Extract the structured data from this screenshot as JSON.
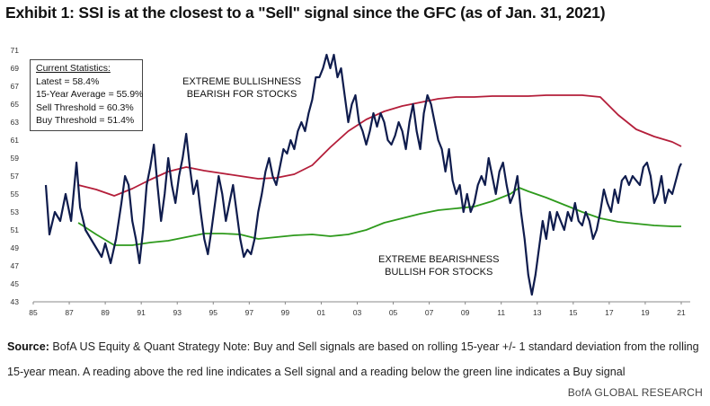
{
  "title": "Exhibit 1: SSI is at the closest to a \"Sell\" signal since the GFC (as of Jan. 31, 2021)",
  "stats": {
    "header": "Current Statistics:",
    "latest": "Latest = 58.4%",
    "avg": "15-Year Average = 55.9%",
    "sell": "Sell Threshold = 60.3%",
    "buy": "Buy Threshold = 51.4%"
  },
  "annotations": {
    "bull_1": "EXTREME BULLISHNESS",
    "bull_2": "BEARISH FOR STOCKS",
    "bear_1": "EXTREME BEARISHNESS",
    "bear_2": "BULLISH FOR STOCKS"
  },
  "source": {
    "label": "Source:",
    "text": " BofA US Equity & Quant Strategy Note: Buy and Sell signals are based on rolling 15-year +/- 1 standard deviation from the rolling 15-year mean. A reading above the red line indicates a Sell signal and a reading below the green line indicates a Buy signal"
  },
  "footer": "BofA GLOBAL RESEARCH",
  "colors": {
    "ssi": "#0f1c4d",
    "sell": "#b41e3a",
    "buy": "#2e9a1c"
  },
  "chart_data": {
    "type": "line",
    "xlim": [
      1985,
      2021.5
    ],
    "ylim": [
      43,
      71
    ],
    "x_ticks": [
      "85",
      "87",
      "89",
      "91",
      "93",
      "95",
      "97",
      "99",
      "01",
      "03",
      "05",
      "07",
      "09",
      "11",
      "13",
      "15",
      "17",
      "19",
      "21"
    ],
    "y_ticks": [
      "43",
      "45",
      "47",
      "49",
      "51",
      "53",
      "55",
      "57",
      "59",
      "61",
      "63",
      "65",
      "67",
      "69",
      "71"
    ],
    "grid": false,
    "series": [
      {
        "key": "ssi",
        "points": [
          [
            1985.7,
            56
          ],
          [
            1985.9,
            50.5
          ],
          [
            1986.2,
            53
          ],
          [
            1986.5,
            52
          ],
          [
            1986.8,
            55
          ],
          [
            1987.1,
            52
          ],
          [
            1987.4,
            58.5
          ],
          [
            1987.6,
            53.5
          ],
          [
            1987.9,
            51
          ],
          [
            1988.2,
            50
          ],
          [
            1988.5,
            49
          ],
          [
            1988.8,
            48
          ],
          [
            1989.0,
            49.5
          ],
          [
            1989.3,
            47.3
          ],
          [
            1989.6,
            50
          ],
          [
            1989.9,
            54
          ],
          [
            1990.1,
            57
          ],
          [
            1990.3,
            56
          ],
          [
            1990.5,
            52
          ],
          [
            1990.7,
            50
          ],
          [
            1990.9,
            47.3
          ],
          [
            1991.1,
            51
          ],
          [
            1991.3,
            56
          ],
          [
            1991.5,
            58
          ],
          [
            1991.7,
            60.5
          ],
          [
            1991.9,
            56
          ],
          [
            1992.1,
            52
          ],
          [
            1992.3,
            55
          ],
          [
            1992.5,
            59
          ],
          [
            1992.7,
            56
          ],
          [
            1992.9,
            54
          ],
          [
            1993.1,
            57
          ],
          [
            1993.3,
            59
          ],
          [
            1993.5,
            61.7
          ],
          [
            1993.7,
            58
          ],
          [
            1993.9,
            55
          ],
          [
            1994.1,
            56.5
          ],
          [
            1994.3,
            53
          ],
          [
            1994.5,
            50
          ],
          [
            1994.7,
            48.3
          ],
          [
            1994.9,
            51
          ],
          [
            1995.1,
            54
          ],
          [
            1995.3,
            57
          ],
          [
            1995.5,
            55
          ],
          [
            1995.7,
            52
          ],
          [
            1995.9,
            54
          ],
          [
            1996.1,
            56
          ],
          [
            1996.3,
            53
          ],
          [
            1996.5,
            50
          ],
          [
            1996.7,
            48
          ],
          [
            1996.9,
            48.8
          ],
          [
            1997.1,
            48.3
          ],
          [
            1997.3,
            50
          ],
          [
            1997.5,
            53
          ],
          [
            1997.7,
            55
          ],
          [
            1997.9,
            57.5
          ],
          [
            1998.1,
            59
          ],
          [
            1998.3,
            57
          ],
          [
            1998.5,
            56
          ],
          [
            1998.7,
            58
          ],
          [
            1998.9,
            60
          ],
          [
            1999.1,
            59.5
          ],
          [
            1999.3,
            61
          ],
          [
            1999.5,
            60
          ],
          [
            1999.7,
            62
          ],
          [
            1999.9,
            63
          ],
          [
            2000.1,
            62
          ],
          [
            2000.3,
            64
          ],
          [
            2000.5,
            65.5
          ],
          [
            2000.7,
            68
          ],
          [
            2000.9,
            68
          ],
          [
            2001.1,
            69
          ],
          [
            2001.3,
            70.5
          ],
          [
            2001.5,
            69
          ],
          [
            2001.7,
            70.5
          ],
          [
            2001.9,
            68
          ],
          [
            2002.1,
            69
          ],
          [
            2002.3,
            66
          ],
          [
            2002.5,
            63
          ],
          [
            2002.7,
            65
          ],
          [
            2002.9,
            66
          ],
          [
            2003.1,
            63
          ],
          [
            2003.3,
            62
          ],
          [
            2003.5,
            60.5
          ],
          [
            2003.7,
            62
          ],
          [
            2003.9,
            64
          ],
          [
            2004.1,
            62.5
          ],
          [
            2004.3,
            64
          ],
          [
            2004.5,
            63
          ],
          [
            2004.7,
            61
          ],
          [
            2004.9,
            60.5
          ],
          [
            2005.1,
            61.5
          ],
          [
            2005.3,
            63
          ],
          [
            2005.5,
            62
          ],
          [
            2005.7,
            60
          ],
          [
            2005.9,
            63
          ],
          [
            2006.1,
            65
          ],
          [
            2006.3,
            62
          ],
          [
            2006.5,
            60
          ],
          [
            2006.7,
            64
          ],
          [
            2006.9,
            66
          ],
          [
            2007.1,
            65
          ],
          [
            2007.3,
            63
          ],
          [
            2007.5,
            61
          ],
          [
            2007.7,
            60
          ],
          [
            2007.9,
            57.5
          ],
          [
            2008.1,
            60
          ],
          [
            2008.3,
            56.5
          ],
          [
            2008.5,
            55
          ],
          [
            2008.7,
            56
          ],
          [
            2008.9,
            53
          ],
          [
            2009.1,
            55
          ],
          [
            2009.3,
            53
          ],
          [
            2009.5,
            54
          ],
          [
            2009.7,
            56
          ],
          [
            2009.9,
            57
          ],
          [
            2010.1,
            56
          ],
          [
            2010.3,
            59
          ],
          [
            2010.5,
            57
          ],
          [
            2010.7,
            55
          ],
          [
            2010.9,
            57.5
          ],
          [
            2011.1,
            58.5
          ],
          [
            2011.3,
            56
          ],
          [
            2011.5,
            54
          ],
          [
            2011.7,
            55
          ],
          [
            2011.9,
            57
          ],
          [
            2012.1,
            53
          ],
          [
            2012.3,
            50
          ],
          [
            2012.5,
            46
          ],
          [
            2012.7,
            43.8
          ],
          [
            2012.9,
            46
          ],
          [
            2013.1,
            49
          ],
          [
            2013.3,
            52
          ],
          [
            2013.5,
            50
          ],
          [
            2013.7,
            53
          ],
          [
            2013.9,
            51
          ],
          [
            2014.1,
            53
          ],
          [
            2014.3,
            52
          ],
          [
            2014.5,
            51
          ],
          [
            2014.7,
            53
          ],
          [
            2014.9,
            52
          ],
          [
            2015.1,
            54
          ],
          [
            2015.3,
            52
          ],
          [
            2015.5,
            51.5
          ],
          [
            2015.7,
            53
          ],
          [
            2015.9,
            52
          ],
          [
            2016.1,
            50
          ],
          [
            2016.3,
            51
          ],
          [
            2016.5,
            53
          ],
          [
            2016.7,
            55.5
          ],
          [
            2016.9,
            54
          ],
          [
            2017.1,
            53
          ],
          [
            2017.3,
            55.5
          ],
          [
            2017.5,
            54
          ],
          [
            2017.7,
            56.5
          ],
          [
            2017.9,
            57
          ],
          [
            2018.1,
            56
          ],
          [
            2018.3,
            57
          ],
          [
            2018.5,
            56.5
          ],
          [
            2018.7,
            56
          ],
          [
            2018.9,
            58
          ],
          [
            2019.1,
            58.5
          ],
          [
            2019.3,
            57
          ],
          [
            2019.5,
            54
          ],
          [
            2019.7,
            55
          ],
          [
            2019.9,
            57
          ],
          [
            2020.1,
            54
          ],
          [
            2020.3,
            55.5
          ],
          [
            2020.5,
            55
          ],
          [
            2020.7,
            56.5
          ],
          [
            2020.9,
            58
          ],
          [
            2021.0,
            58.4
          ]
        ]
      },
      {
        "key": "sell",
        "points": [
          [
            1987.5,
            56
          ],
          [
            1988.5,
            55.5
          ],
          [
            1989.5,
            54.8
          ],
          [
            1990.5,
            55.6
          ],
          [
            1991.5,
            56.6
          ],
          [
            1992.5,
            57.5
          ],
          [
            1993.5,
            58
          ],
          [
            1994.5,
            57.6
          ],
          [
            1995.5,
            57.3
          ],
          [
            1996.5,
            57
          ],
          [
            1997.5,
            56.7
          ],
          [
            1998.5,
            56.8
          ],
          [
            1999.5,
            57.2
          ],
          [
            2000.5,
            58.2
          ],
          [
            2001.5,
            60.2
          ],
          [
            2002.5,
            62
          ],
          [
            2003.5,
            63.3
          ],
          [
            2004.5,
            64.2
          ],
          [
            2005.5,
            64.8
          ],
          [
            2006.5,
            65.2
          ],
          [
            2007.5,
            65.6
          ],
          [
            2008.5,
            65.8
          ],
          [
            2009.5,
            65.8
          ],
          [
            2010.5,
            65.9
          ],
          [
            2011.5,
            65.9
          ],
          [
            2012.5,
            65.9
          ],
          [
            2013.5,
            66
          ],
          [
            2014.5,
            66
          ],
          [
            2015.5,
            66
          ],
          [
            2016.5,
            65.8
          ],
          [
            2017.5,
            63.8
          ],
          [
            2018.5,
            62.2
          ],
          [
            2019.5,
            61.4
          ],
          [
            2020.5,
            60.8
          ],
          [
            2021.0,
            60.3
          ]
        ]
      },
      {
        "key": "buy",
        "points": [
          [
            1987.5,
            51.8
          ],
          [
            1988.5,
            50.5
          ],
          [
            1989.5,
            49.3
          ],
          [
            1990.5,
            49.3
          ],
          [
            1991.5,
            49.6
          ],
          [
            1992.5,
            49.8
          ],
          [
            1993.5,
            50.2
          ],
          [
            1994.5,
            50.6
          ],
          [
            1995.5,
            50.6
          ],
          [
            1996.5,
            50.5
          ],
          [
            1997.5,
            50
          ],
          [
            1998.5,
            50.2
          ],
          [
            1999.5,
            50.4
          ],
          [
            2000.5,
            50.5
          ],
          [
            2001.5,
            50.3
          ],
          [
            2002.5,
            50.5
          ],
          [
            2003.5,
            51
          ],
          [
            2004.5,
            51.8
          ],
          [
            2005.5,
            52.3
          ],
          [
            2006.5,
            52.8
          ],
          [
            2007.5,
            53.2
          ],
          [
            2008.5,
            53.4
          ],
          [
            2009.5,
            53.6
          ],
          [
            2010.5,
            54.2
          ],
          [
            2011.5,
            55
          ],
          [
            2012.0,
            55.7
          ],
          [
            2012.5,
            55.3
          ],
          [
            2013.5,
            54.6
          ],
          [
            2014.5,
            53.8
          ],
          [
            2015.5,
            53
          ],
          [
            2016.5,
            52.3
          ],
          [
            2017.5,
            51.9
          ],
          [
            2018.5,
            51.7
          ],
          [
            2019.5,
            51.5
          ],
          [
            2020.5,
            51.4
          ],
          [
            2021.0,
            51.4
          ]
        ]
      }
    ]
  }
}
